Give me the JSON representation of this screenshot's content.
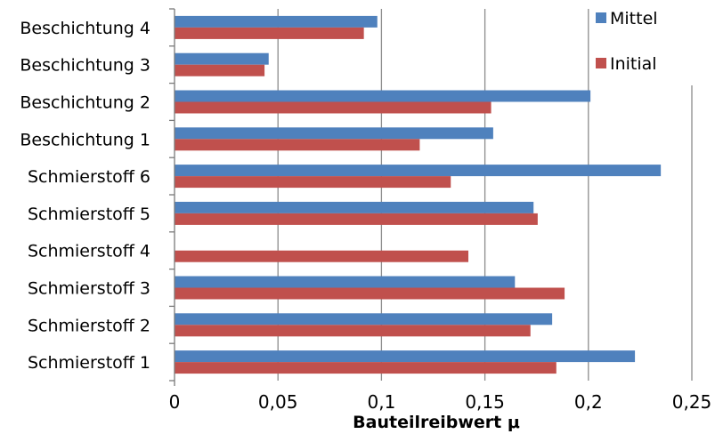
{
  "chart_data": {
    "type": "bar",
    "orientation": "horizontal",
    "categories": [
      "Schmierstoff 1",
      "Schmierstoff 2",
      "Schmierstoff 3",
      "Schmierstoff 4",
      "Schmierstoff 5",
      "Schmierstoff 6",
      "Beschichtung 1",
      "Beschichtung 2",
      "Beschichtung 3",
      "Beschichtung 4"
    ],
    "series": [
      {
        "name": "Mittel",
        "color": "#4f81bd",
        "values": [
          0.2225,
          0.1825,
          0.1645,
          0,
          0.1735,
          0.235,
          0.154,
          0.201,
          0.0455,
          0.098
        ]
      },
      {
        "name": "Initial",
        "color": "#c0504d",
        "values": [
          0.1845,
          0.172,
          0.1885,
          0.142,
          0.1755,
          0.1335,
          0.1185,
          0.153,
          0.0435,
          0.0915
        ]
      }
    ],
    "xlabel": "Bauteilreibwert μ",
    "ylabel": "",
    "xlim": [
      0,
      0.25
    ],
    "xticks": [
      "0",
      "0,05",
      "0,1",
      "0,15",
      "0,2",
      "0,25"
    ],
    "grid": true,
    "legend_position": "top-right"
  }
}
